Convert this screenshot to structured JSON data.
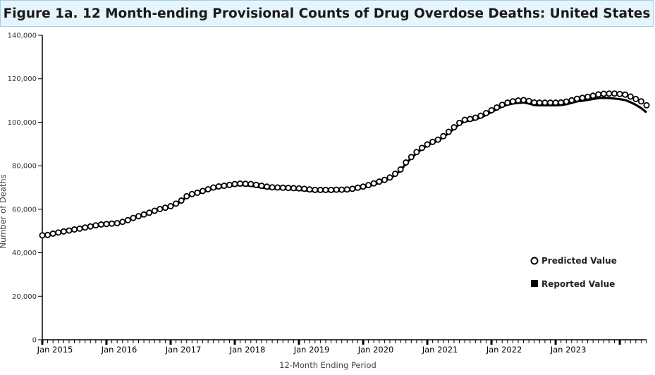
{
  "title": "Figure 1a. 12 Month-ending Provisional Counts of Drug Overdose Deaths: United States",
  "chart_data": {
    "type": "line",
    "title": "Figure 1a. 12 Month-ending Provisional Counts of Drug Overdose Deaths: United States",
    "xlabel": "12-Month Ending Period",
    "ylabel": "Number of Deaths",
    "ylim": [
      0,
      140000
    ],
    "yticks": [
      0,
      20000,
      40000,
      60000,
      80000,
      100000,
      120000,
      140000
    ],
    "ytick_labels": [
      "0",
      "20,000",
      "40,000",
      "60,000",
      "80,000",
      "100,000",
      "120,000",
      "140,000"
    ],
    "x_start": "Jan 2015",
    "x_end": "Nov 2023",
    "xtick_labels": [
      "Jan 2015",
      "Jan 2016",
      "Jan 2017",
      "Jan 2018",
      "Jan 2019",
      "Jan 2020",
      "Jan 2021",
      "Jan 2022",
      "Jan 2023"
    ],
    "legend_position": "bottom-right",
    "series": [
      {
        "name": "Predicted Value",
        "marker": "open-circle",
        "color": "#000000",
        "values": [
          48000,
          48200,
          48800,
          49300,
          49800,
          50200,
          50700,
          51100,
          51600,
          52100,
          52600,
          53000,
          53200,
          53400,
          53600,
          54200,
          55000,
          56000,
          56800,
          57600,
          58400,
          59300,
          60100,
          60700,
          61400,
          62600,
          64000,
          66000,
          67000,
          67600,
          68400,
          69200,
          70000,
          70500,
          70800,
          71200,
          71600,
          71800,
          71700,
          71600,
          71200,
          70800,
          70400,
          70100,
          70000,
          69900,
          69800,
          69700,
          69600,
          69400,
          69100,
          68900,
          68900,
          68900,
          68900,
          69000,
          69000,
          69100,
          69400,
          69900,
          70400,
          71100,
          71900,
          72700,
          73500,
          74600,
          76300,
          78300,
          81500,
          84000,
          86300,
          88200,
          89800,
          91000,
          92000,
          93600,
          95600,
          97700,
          99700,
          101100,
          101500,
          102100,
          103000,
          104200,
          105500,
          106800,
          108000,
          109000,
          109600,
          110000,
          110200,
          109800,
          109100,
          109000,
          109000,
          109000,
          109000,
          109100,
          109500,
          110100,
          110800,
          111200,
          111700,
          112200,
          112800,
          113100,
          113200,
          113200,
          113000,
          112700,
          111800,
          110700,
          109600,
          107800
        ]
      },
      {
        "name": "Reported Value",
        "marker": "filled-square",
        "color": "#000000",
        "values": [
          48000,
          48200,
          48800,
          49300,
          49800,
          50200,
          50700,
          51100,
          51600,
          52100,
          52600,
          53000,
          53200,
          53300,
          53500,
          54100,
          54900,
          55800,
          56600,
          57400,
          58200,
          59100,
          59900,
          60500,
          61200,
          62300,
          63700,
          65700,
          66600,
          67200,
          67900,
          68700,
          69400,
          69900,
          70300,
          70700,
          71000,
          71100,
          71000,
          70800,
          70400,
          70000,
          69700,
          69500,
          69400,
          69300,
          69200,
          69100,
          68900,
          68700,
          68500,
          68300,
          68300,
          68300,
          68300,
          68400,
          68500,
          68600,
          68900,
          69400,
          69900,
          70600,
          71400,
          72200,
          73000,
          74100,
          75800,
          77800,
          81000,
          83500,
          85800,
          87700,
          89300,
          90500,
          91500,
          93100,
          95000,
          97100,
          99100,
          100400,
          100700,
          101300,
          102200,
          103400,
          104700,
          106000,
          107200,
          108100,
          108600,
          108900,
          109100,
          108600,
          107900,
          107800,
          107800,
          107800,
          107800,
          107900,
          108300,
          108900,
          109600,
          109900,
          110300,
          110700,
          111100,
          111200,
          111100,
          110900,
          110600,
          110200,
          109200,
          108000,
          106500,
          104500
        ]
      }
    ]
  }
}
